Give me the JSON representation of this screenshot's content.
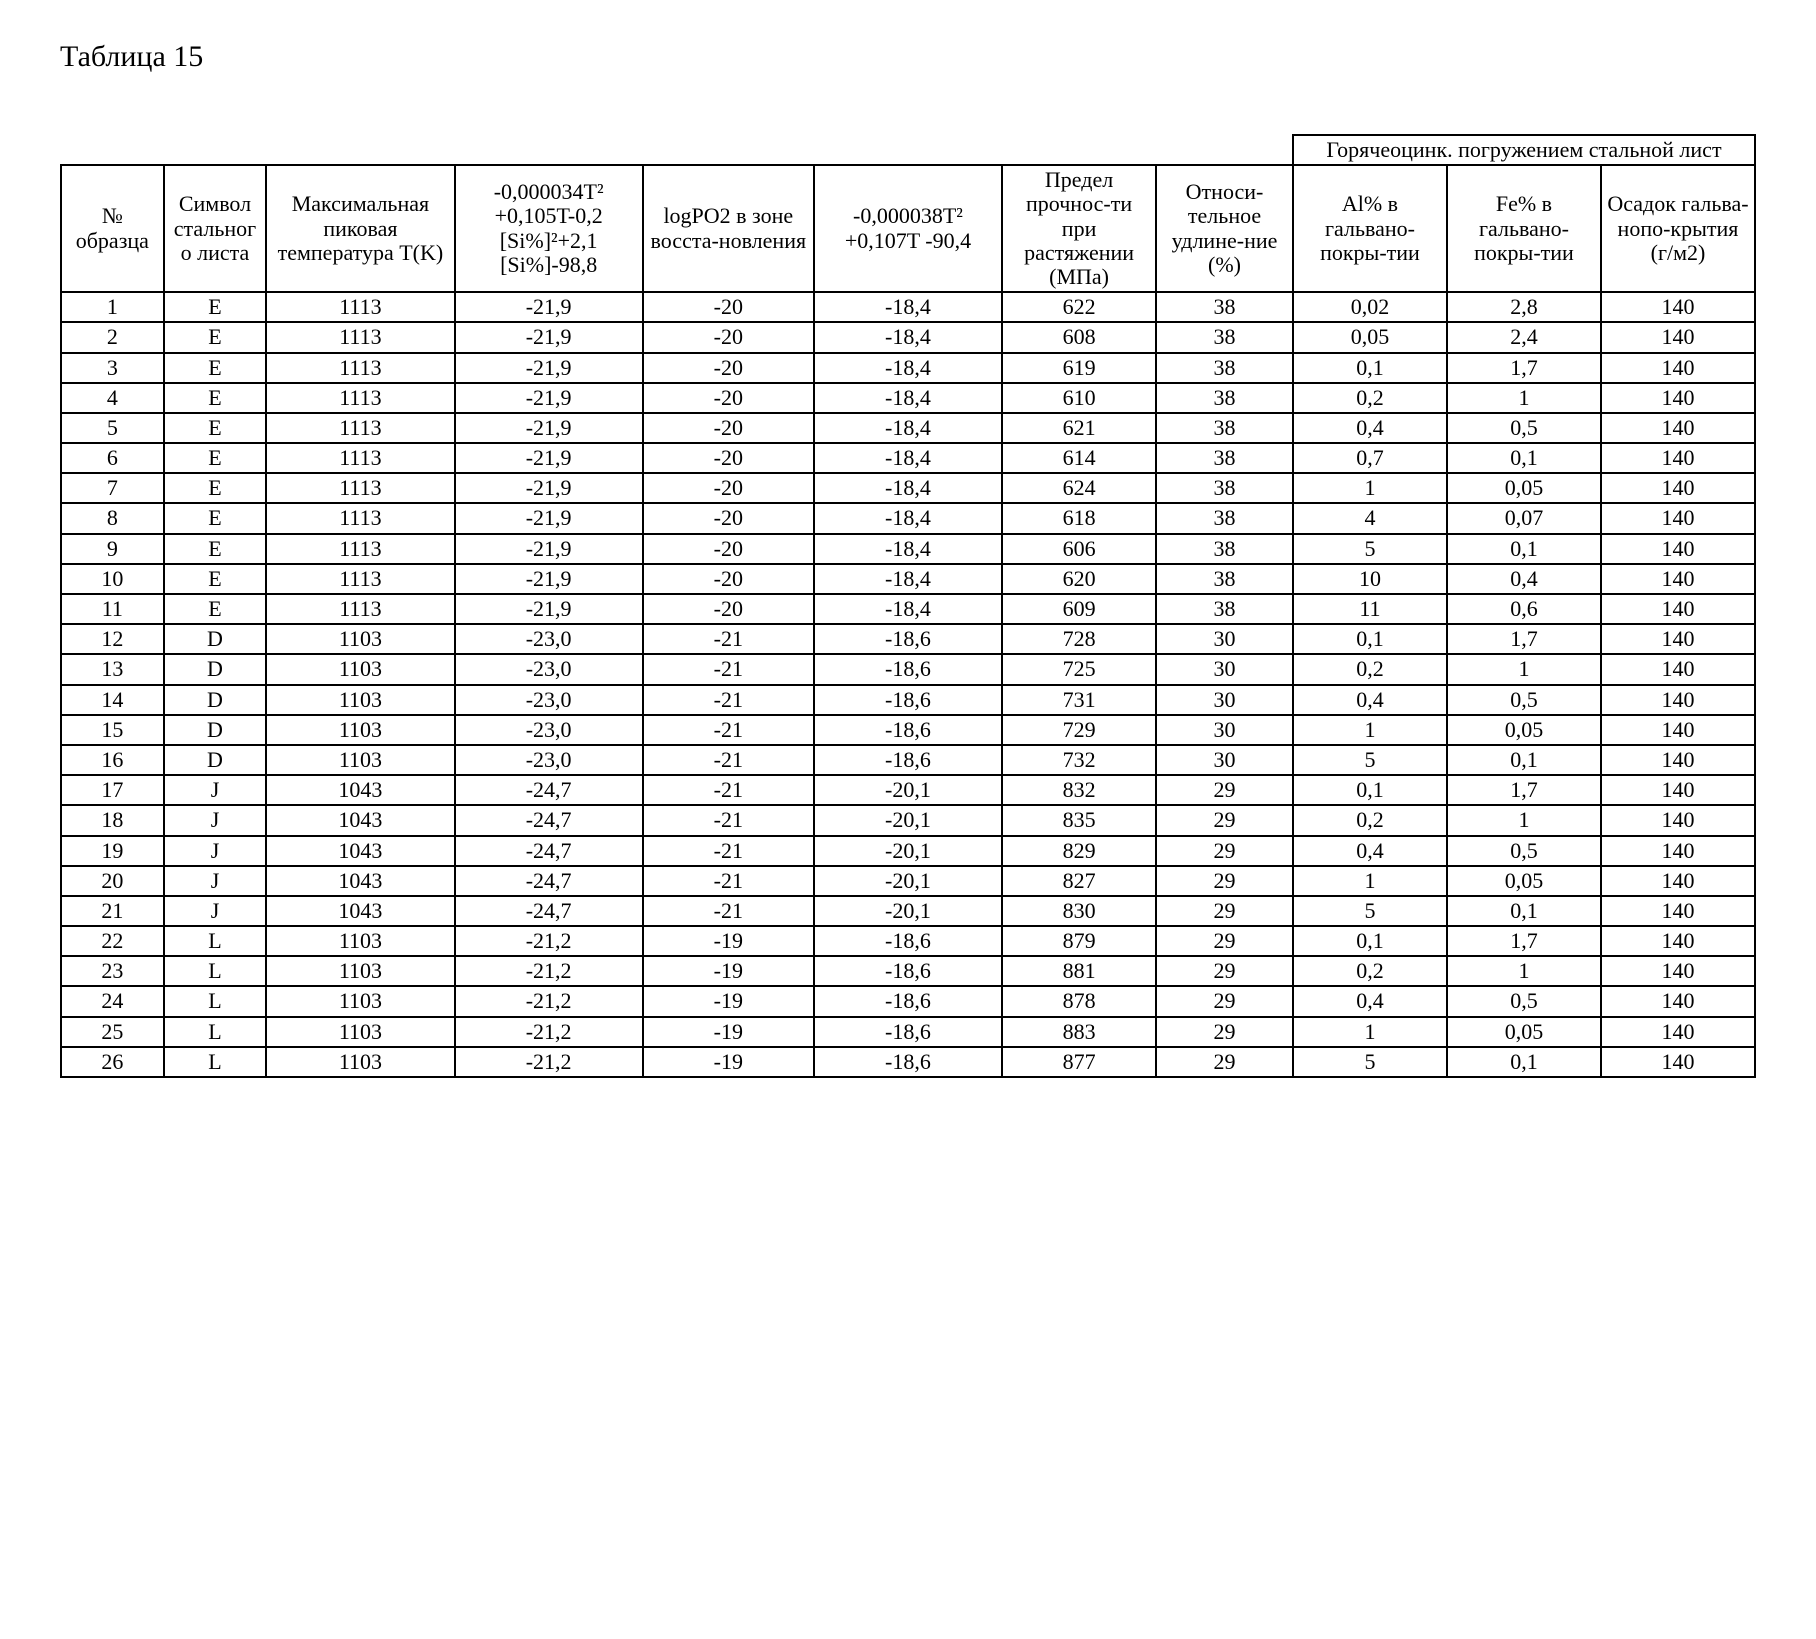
{
  "title": "Таблица 15",
  "table": {
    "group_header": "Горячеоцинк. погружением стальной лист",
    "columns": [
      "№ образца",
      "Символ стального листа",
      "Максимальная пиковая температура T(K)",
      "-0,000034T² +0,105T-0,2 [Si%]²+2,1 [Si%]-98,8",
      "logPO2 в зоне восста-новления",
      "-0,000038T² +0,107T -90,4",
      "Предел прочнос-ти при растяжении (МПа)",
      "Относи-тельное удлине-ние (%)",
      "Al% в гальвано-покры-тии",
      "Fe% в гальвано-покры-тии",
      "Осадок гальва-нопо-крытия (г/м2)"
    ],
    "rows": [
      [
        "1",
        "E",
        "1113",
        "-21,9",
        "-20",
        "-18,4",
        "622",
        "38",
        "0,02",
        "2,8",
        "140"
      ],
      [
        "2",
        "E",
        "1113",
        "-21,9",
        "-20",
        "-18,4",
        "608",
        "38",
        "0,05",
        "2,4",
        "140"
      ],
      [
        "3",
        "E",
        "1113",
        "-21,9",
        "-20",
        "-18,4",
        "619",
        "38",
        "0,1",
        "1,7",
        "140"
      ],
      [
        "4",
        "E",
        "1113",
        "-21,9",
        "-20",
        "-18,4",
        "610",
        "38",
        "0,2",
        "1",
        "140"
      ],
      [
        "5",
        "E",
        "1113",
        "-21,9",
        "-20",
        "-18,4",
        "621",
        "38",
        "0,4",
        "0,5",
        "140"
      ],
      [
        "6",
        "E",
        "1113",
        "-21,9",
        "-20",
        "-18,4",
        "614",
        "38",
        "0,7",
        "0,1",
        "140"
      ],
      [
        "7",
        "E",
        "1113",
        "-21,9",
        "-20",
        "-18,4",
        "624",
        "38",
        "1",
        "0,05",
        "140"
      ],
      [
        "8",
        "E",
        "1113",
        "-21,9",
        "-20",
        "-18,4",
        "618",
        "38",
        "4",
        "0,07",
        "140"
      ],
      [
        "9",
        "E",
        "1113",
        "-21,9",
        "-20",
        "-18,4",
        "606",
        "38",
        "5",
        "0,1",
        "140"
      ],
      [
        "10",
        "E",
        "1113",
        "-21,9",
        "-20",
        "-18,4",
        "620",
        "38",
        "10",
        "0,4",
        "140"
      ],
      [
        "11",
        "E",
        "1113",
        "-21,9",
        "-20",
        "-18,4",
        "609",
        "38",
        "11",
        "0,6",
        "140"
      ],
      [
        "12",
        "D",
        "1103",
        "-23,0",
        "-21",
        "-18,6",
        "728",
        "30",
        "0,1",
        "1,7",
        "140"
      ],
      [
        "13",
        "D",
        "1103",
        "-23,0",
        "-21",
        "-18,6",
        "725",
        "30",
        "0,2",
        "1",
        "140"
      ],
      [
        "14",
        "D",
        "1103",
        "-23,0",
        "-21",
        "-18,6",
        "731",
        "30",
        "0,4",
        "0,5",
        "140"
      ],
      [
        "15",
        "D",
        "1103",
        "-23,0",
        "-21",
        "-18,6",
        "729",
        "30",
        "1",
        "0,05",
        "140"
      ],
      [
        "16",
        "D",
        "1103",
        "-23,0",
        "-21",
        "-18,6",
        "732",
        "30",
        "5",
        "0,1",
        "140"
      ],
      [
        "17",
        "J",
        "1043",
        "-24,7",
        "-21",
        "-20,1",
        "832",
        "29",
        "0,1",
        "1,7",
        "140"
      ],
      [
        "18",
        "J",
        "1043",
        "-24,7",
        "-21",
        "-20,1",
        "835",
        "29",
        "0,2",
        "1",
        "140"
      ],
      [
        "19",
        "J",
        "1043",
        "-24,7",
        "-21",
        "-20,1",
        "829",
        "29",
        "0,4",
        "0,5",
        "140"
      ],
      [
        "20",
        "J",
        "1043",
        "-24,7",
        "-21",
        "-20,1",
        "827",
        "29",
        "1",
        "0,05",
        "140"
      ],
      [
        "21",
        "J",
        "1043",
        "-24,7",
        "-21",
        "-20,1",
        "830",
        "29",
        "5",
        "0,1",
        "140"
      ],
      [
        "22",
        "L",
        "1103",
        "-21,2",
        "-19",
        "-18,6",
        "879",
        "29",
        "0,1",
        "1,7",
        "140"
      ],
      [
        "23",
        "L",
        "1103",
        "-21,2",
        "-19",
        "-18,6",
        "881",
        "29",
        "0,2",
        "1",
        "140"
      ],
      [
        "24",
        "L",
        "1103",
        "-21,2",
        "-19",
        "-18,6",
        "878",
        "29",
        "0,4",
        "0,5",
        "140"
      ],
      [
        "25",
        "L",
        "1103",
        "-21,2",
        "-19",
        "-18,6",
        "883",
        "29",
        "1",
        "0,05",
        "140"
      ],
      [
        "26",
        "L",
        "1103",
        "-21,2",
        "-19",
        "-18,6",
        "877",
        "29",
        "5",
        "0,1",
        "140"
      ]
    ]
  }
}
